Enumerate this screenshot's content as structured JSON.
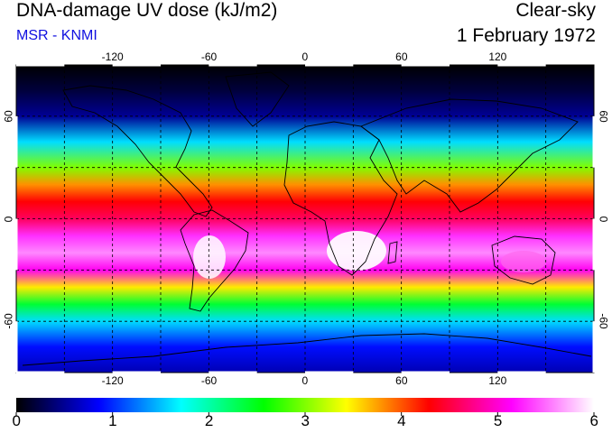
{
  "title": "DNA-damage UV dose (kJ/m2)",
  "subtitle": "MSR - KNMI",
  "mode": "Clear-sky",
  "date": "1 February 1972",
  "longitude_ticks": [
    "-120",
    "-60",
    "0",
    "60",
    "120"
  ],
  "longitude_values": [
    -120,
    -60,
    0,
    60,
    120
  ],
  "latitude_ticks": [
    "60",
    "0",
    "-60"
  ],
  "latitude_values": [
    60,
    0,
    -60
  ],
  "colorbar": {
    "labels": [
      "0",
      "1",
      "2",
      "3",
      "4",
      "5",
      "6"
    ],
    "min": 0,
    "max": 6,
    "colors": [
      "#000000",
      "#0000ff",
      "#00ffff",
      "#00ff00",
      "#ffff00",
      "#ff0000",
      "#ff00ff",
      "#ffffff"
    ]
  },
  "map_data": {
    "lon_range": [
      -180,
      180
    ],
    "lat_range": [
      -90,
      90
    ],
    "dose_profile_lat": [
      90,
      75,
      60,
      45,
      30,
      20,
      10,
      0,
      -10,
      -20,
      -30,
      -40,
      -50,
      -60,
      -75,
      -90
    ],
    "dose_profile_val": [
      0.0,
      0.2,
      0.5,
      1.6,
      3.0,
      3.8,
      4.3,
      4.6,
      5.3,
      5.6,
      5.1,
      3.5,
      2.4,
      1.6,
      0.9,
      0.6
    ]
  }
}
